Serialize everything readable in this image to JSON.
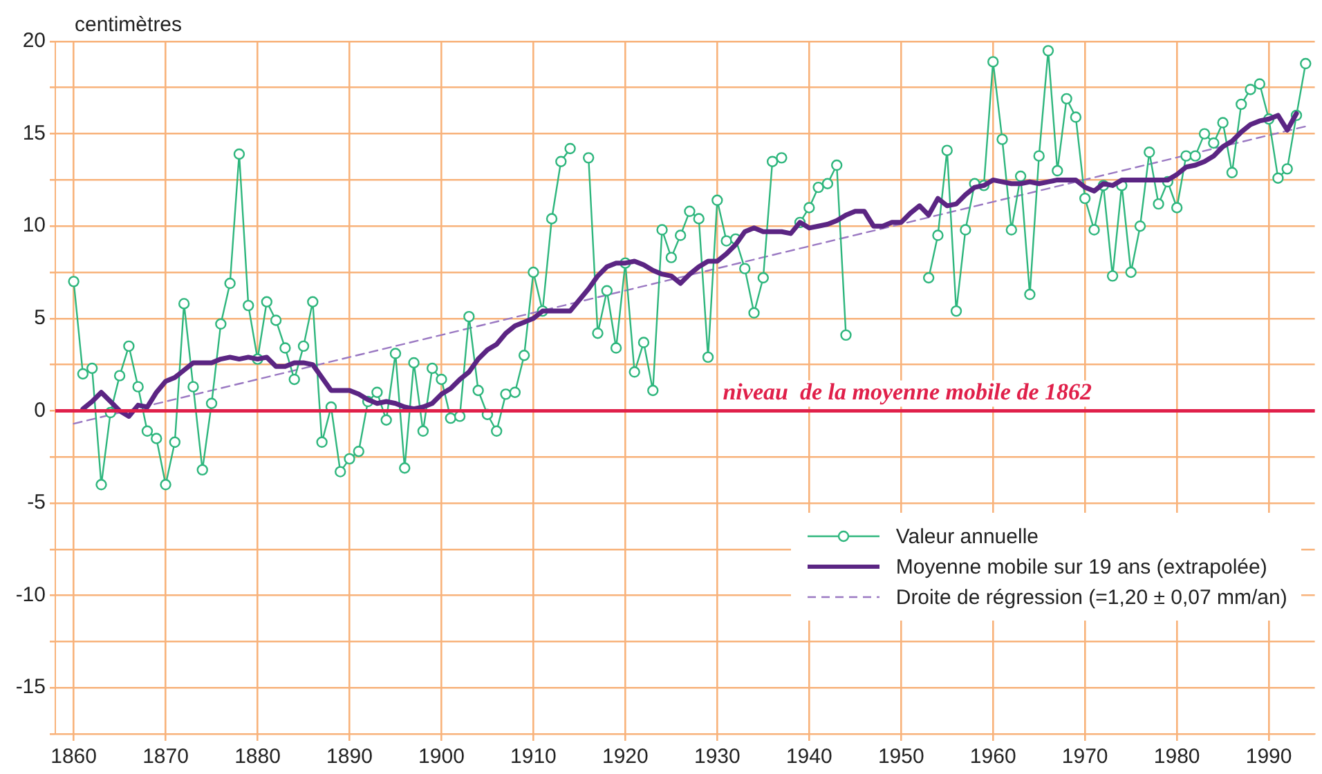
{
  "chart_data": {
    "type": "line",
    "ylabel": "centimètres",
    "x": [
      1860,
      1861,
      1862,
      1863,
      1864,
      1865,
      1866,
      1867,
      1868,
      1869,
      1870,
      1871,
      1872,
      1873,
      1874,
      1875,
      1876,
      1877,
      1878,
      1879,
      1880,
      1881,
      1882,
      1883,
      1884,
      1885,
      1886,
      1887,
      1888,
      1889,
      1890,
      1891,
      1892,
      1893,
      1894,
      1895,
      1896,
      1897,
      1898,
      1899,
      1900,
      1901,
      1902,
      1903,
      1904,
      1905,
      1906,
      1907,
      1908,
      1909,
      1910,
      1911,
      1912,
      1913,
      1914,
      1915,
      1916,
      1917,
      1918,
      1919,
      1920,
      1921,
      1922,
      1923,
      1924,
      1925,
      1926,
      1927,
      1928,
      1929,
      1930,
      1931,
      1932,
      1933,
      1934,
      1935,
      1936,
      1937,
      1938,
      1939,
      1940,
      1941,
      1942,
      1943,
      1944,
      1945,
      1946,
      1947,
      1948,
      1949,
      1950,
      1951,
      1952,
      1953,
      1954,
      1955,
      1956,
      1957,
      1958,
      1959,
      1960,
      1961,
      1962,
      1963,
      1964,
      1965,
      1966,
      1967,
      1968,
      1969,
      1970,
      1971,
      1972,
      1973,
      1974,
      1975,
      1976,
      1977,
      1978,
      1979,
      1980,
      1981,
      1982,
      1983,
      1984,
      1985,
      1986,
      1987,
      1988,
      1989,
      1990,
      1991,
      1992,
      1993,
      1994
    ],
    "series": [
      {
        "name": "Valeur annuelle",
        "color": "#2eb67d",
        "marker": "circle",
        "line_style": "solid",
        "values": [
          7.0,
          2.0,
          2.3,
          -4.0,
          -0.1,
          1.9,
          3.5,
          1.3,
          -1.1,
          -1.5,
          -4.0,
          -1.7,
          5.8,
          1.3,
          -3.2,
          0.4,
          4.7,
          6.9,
          13.9,
          5.7,
          2.8,
          5.9,
          4.9,
          3.4,
          1.7,
          3.5,
          5.9,
          -1.7,
          0.2,
          -3.3,
          -2.6,
          -2.2,
          0.5,
          1.0,
          -0.5,
          3.1,
          -3.1,
          2.6,
          -1.1,
          2.3,
          1.7,
          -0.4,
          -0.3,
          5.1,
          1.1,
          -0.2,
          -1.1,
          0.9,
          1.0,
          3.0,
          7.5,
          5.4,
          10.4,
          13.5,
          14.2,
          null,
          13.7,
          4.2,
          6.5,
          3.4,
          8.0,
          2.1,
          3.7,
          1.1,
          9.8,
          8.3,
          9.5,
          10.8,
          10.4,
          2.9,
          11.4,
          9.2,
          9.3,
          7.7,
          5.3,
          7.2,
          13.5,
          13.7,
          null,
          10.2,
          11.0,
          12.1,
          12.3,
          13.3,
          4.1,
          null,
          null,
          null,
          null,
          null,
          null,
          null,
          null,
          7.2,
          9.5,
          14.1,
          5.4,
          9.8,
          12.3,
          12.2,
          18.9,
          14.7,
          9.8,
          12.7,
          6.3,
          13.8,
          19.5,
          13.0,
          16.9,
          15.9,
          11.5,
          9.8,
          12.2,
          7.3,
          12.2,
          7.5,
          10.0,
          14.0,
          11.2,
          12.4,
          11.0,
          13.8,
          13.8,
          15.0,
          14.5,
          15.6,
          12.9,
          16.6,
          17.4,
          17.7,
          15.8,
          12.6,
          13.1,
          16.0,
          18.8
        ]
      },
      {
        "name": "Moyenne mobile sur 19 ans (extrapolée)",
        "color": "#5b2583",
        "marker": "none",
        "line_style": "solid",
        "values": [
          null,
          0.1,
          0.5,
          1.0,
          0.5,
          0.0,
          -0.3,
          0.3,
          0.2,
          1.0,
          1.6,
          1.8,
          2.2,
          2.6,
          2.6,
          2.6,
          2.8,
          2.9,
          2.8,
          2.9,
          2.8,
          2.9,
          2.4,
          2.4,
          2.6,
          2.6,
          2.5,
          1.8,
          1.1,
          1.1,
          1.1,
          0.9,
          0.6,
          0.4,
          0.5,
          0.4,
          0.2,
          0.1,
          0.2,
          0.4,
          0.9,
          1.2,
          1.7,
          2.1,
          2.8,
          3.3,
          3.6,
          4.2,
          4.6,
          4.8,
          5.0,
          5.4,
          5.4,
          5.4,
          5.4,
          6.0,
          6.6,
          7.3,
          7.8,
          8.0,
          8.0,
          8.1,
          7.9,
          7.6,
          7.4,
          7.3,
          6.9,
          7.4,
          7.8,
          8.1,
          8.1,
          8.5,
          9.0,
          9.7,
          9.9,
          9.7,
          9.7,
          9.7,
          9.6,
          10.2,
          9.9,
          10.0,
          10.1,
          10.3,
          10.6,
          10.8,
          10.8,
          10.0,
          10.0,
          10.2,
          10.2,
          10.7,
          11.1,
          10.6,
          11.5,
          11.1,
          11.2,
          11.7,
          12.1,
          12.2,
          12.5,
          12.4,
          12.3,
          12.3,
          12.4,
          12.3,
          12.4,
          12.5,
          12.5,
          12.5,
          12.1,
          11.9,
          12.3,
          12.2,
          12.5,
          12.5,
          12.5,
          12.5,
          12.5,
          12.5,
          12.8,
          13.2,
          13.3,
          13.5,
          13.8,
          14.3,
          14.6,
          15.1,
          15.5,
          15.7,
          15.8,
          16.0,
          15.2,
          16.1,
          null
        ]
      },
      {
        "name": "Droite de régression (=1,20 ± 0,07 mm/an)",
        "color": "#9a78c2",
        "marker": "none",
        "line_style": "dashed",
        "x": [
          1860,
          1994
        ],
        "values": [
          -0.7,
          15.4
        ]
      }
    ],
    "xlim": [
      1858,
      1995
    ],
    "xticks": [
      1860,
      1870,
      1880,
      1890,
      1900,
      1910,
      1920,
      1930,
      1940,
      1950,
      1960,
      1970,
      1980,
      1990
    ],
    "ylim": [
      -17.5,
      20
    ],
    "yticks": [
      {
        "value": -17.5,
        "label": null
      },
      -15,
      {
        "value": -12.5,
        "label": null
      },
      -10,
      {
        "value": -7.5,
        "label": null
      },
      -5,
      {
        "value": -2.5,
        "label": null
      },
      0,
      {
        "value": 2.5,
        "label": null
      },
      5,
      {
        "value": 7.5,
        "label": null
      },
      10,
      {
        "value": 12.5,
        "label": null
      },
      15,
      {
        "value": 17.5,
        "label": null
      },
      20
    ],
    "ref_lines": [
      {
        "axis": "y",
        "value": 0,
        "label": "niveau  de la moyenne mobile de 1862",
        "color": "#e0204a"
      }
    ],
    "grid": true,
    "legend": "bottom right"
  }
}
